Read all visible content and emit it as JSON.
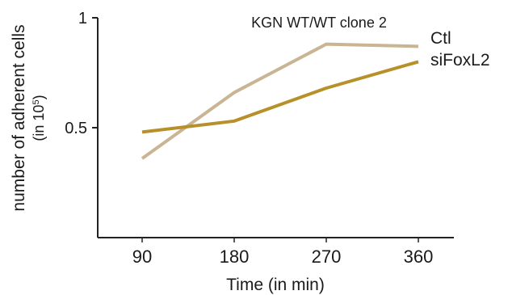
{
  "chart_data": {
    "type": "line",
    "title": "KGN WT/WT clone 2",
    "xlabel": "Time (in min)",
    "ylabel_line1": "number of adherent cells",
    "ylabel_line2_prefix": "(in 10",
    "ylabel_line2_exp": "5",
    "ylabel_line2_suffix": ")",
    "x": [
      90,
      180,
      270,
      360
    ],
    "x_tick_labels": [
      "90",
      "180",
      "270",
      "360"
    ],
    "y_ticks": [
      0.5,
      1
    ],
    "y_tick_labels": [
      "0.5",
      "1"
    ],
    "ylim": [
      0,
      1
    ],
    "grid": false,
    "legend_placement": "right",
    "series": [
      {
        "name": "Ctl",
        "values": [
          0.36,
          0.66,
          0.88,
          0.87
        ],
        "color": "#c9b493"
      },
      {
        "name": "siFoxL2",
        "values": [
          0.48,
          0.53,
          0.68,
          0.8
        ],
        "color": "#b8902a"
      }
    ]
  }
}
